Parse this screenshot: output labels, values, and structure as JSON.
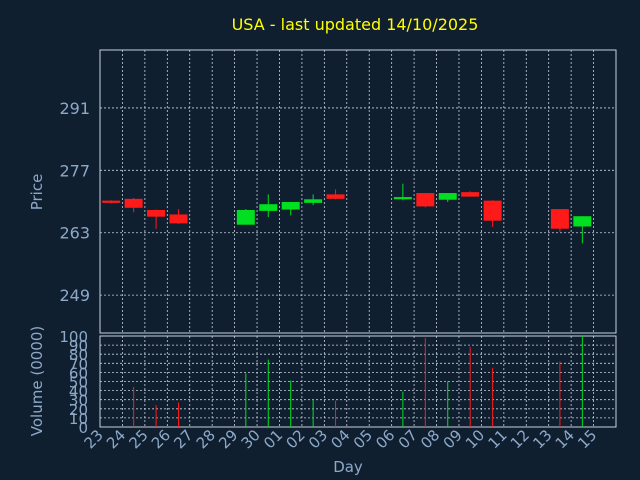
{
  "title": "USA - last updated 14/10/2025",
  "colors": {
    "background": "#0f1f30",
    "title": "#ffff00",
    "axis_text": "#8ea9c8",
    "frame": "#c8d0dc",
    "grid": "#c8d0dc",
    "up": "#00e020",
    "down": "#ff1a1a"
  },
  "chart_data": [
    {
      "type": "candlestick",
      "ylabel": "Price",
      "yticks": [
        249,
        263,
        277,
        291
      ],
      "ylim": [
        240.5,
        304
      ],
      "grid": true,
      "days": [
        "23",
        "24",
        "25",
        "26",
        "27",
        "28",
        "29",
        "30",
        "01",
        "02",
        "03",
        "04",
        "05",
        "06",
        "07",
        "08",
        "09",
        "10",
        "11",
        "12",
        "13",
        "14",
        "15"
      ],
      "candles": [
        {
          "day": "23",
          "open": 270.2,
          "high": 270.3,
          "low": 269.6,
          "close": 269.7
        },
        {
          "day": "24",
          "open": 270.6,
          "high": 270.8,
          "low": 267.6,
          "close": 268.6
        },
        {
          "day": "25",
          "open": 268.1,
          "high": 268.2,
          "low": 263.9,
          "close": 266.6
        },
        {
          "day": "26",
          "open": 267.1,
          "high": 268.3,
          "low": 265.0,
          "close": 265.1
        },
        {
          "day": "29",
          "open": 264.8,
          "high": 268.3,
          "low": 264.8,
          "close": 268.1
        },
        {
          "day": "30",
          "open": 267.9,
          "high": 271.6,
          "low": 266.5,
          "close": 269.4
        },
        {
          "day": "01",
          "open": 268.2,
          "high": 269.9,
          "low": 266.9,
          "close": 269.9
        },
        {
          "day": "02",
          "open": 269.7,
          "high": 271.6,
          "low": 269.2,
          "close": 270.5
        },
        {
          "day": "03",
          "open": 271.6,
          "high": 272.7,
          "low": 270.5,
          "close": 270.6
        },
        {
          "day": "06",
          "open": 270.5,
          "high": 274.0,
          "low": 270.3,
          "close": 271.0
        },
        {
          "day": "07",
          "open": 271.9,
          "high": 271.9,
          "low": 268.7,
          "close": 268.9
        },
        {
          "day": "08",
          "open": 270.4,
          "high": 271.9,
          "low": 269.9,
          "close": 271.9
        },
        {
          "day": "09",
          "open": 272.1,
          "high": 272.3,
          "low": 271.1,
          "close": 271.1
        },
        {
          "day": "10",
          "open": 270.2,
          "high": 270.3,
          "low": 264.3,
          "close": 265.7
        },
        {
          "day": "13",
          "open": 268.3,
          "high": 268.3,
          "low": 263.2,
          "close": 263.9
        },
        {
          "day": "14",
          "open": 264.4,
          "high": 266.7,
          "low": 260.6,
          "close": 266.7
        }
      ]
    },
    {
      "type": "bar",
      "ylabel": "Volume (0000)",
      "xlabel": "Day",
      "yticks": [
        0,
        10,
        20,
        30,
        40,
        50,
        60,
        70,
        80,
        90,
        100
      ],
      "ylim": [
        0,
        100
      ],
      "grid": true,
      "categories": [
        "23",
        "24",
        "25",
        "26",
        "29",
        "30",
        "01",
        "02",
        "03",
        "06",
        "07",
        "08",
        "09",
        "10",
        "13",
        "14"
      ],
      "values": [
        0,
        44,
        24,
        27,
        59,
        74,
        51,
        30,
        29,
        39,
        98,
        50,
        88,
        65,
        72,
        100
      ],
      "directions": [
        "down",
        "down",
        "down",
        "down",
        "up",
        "up",
        "up",
        "up",
        "down",
        "up",
        "down",
        "up",
        "down",
        "down",
        "down",
        "up"
      ]
    }
  ]
}
